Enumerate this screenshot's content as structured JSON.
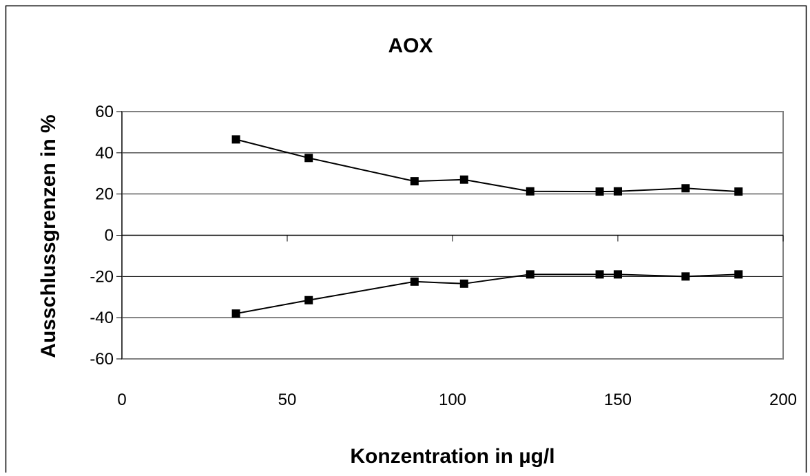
{
  "chart_data": {
    "type": "line",
    "title": "AOX",
    "xlabel": "Konzentration in µg/l",
    "ylabel": "Ausschlussgrenzen in %",
    "xlim": [
      0,
      200
    ],
    "ylim": [
      -60,
      60
    ],
    "xticks": [
      "0",
      "50",
      "100",
      "150",
      "200"
    ],
    "yticks": [
      "60",
      "40",
      "20",
      "0",
      "-20",
      "-40",
      "-60"
    ],
    "grid": "horizontal",
    "legend": "none",
    "colors": {
      "line": "#000000",
      "marker": "#000000",
      "grid": "#000000",
      "plot_border": "#808080"
    },
    "series": [
      {
        "x": [
          34.5,
          56.5,
          88.5,
          103.5,
          123.5,
          144.5,
          150,
          170.5,
          186.5
        ],
        "y": [
          46.5,
          37.5,
          26.2,
          27,
          21.3,
          21.2,
          21.3,
          22.8,
          21.2
        ]
      },
      {
        "x": [
          34.5,
          56.5,
          88.5,
          103.5,
          123.5,
          144.5,
          150,
          170.5,
          186.5
        ],
        "y": [
          -38,
          -31.5,
          -22.5,
          -23.5,
          -19,
          -19,
          -19,
          -20,
          -19
        ]
      }
    ]
  }
}
